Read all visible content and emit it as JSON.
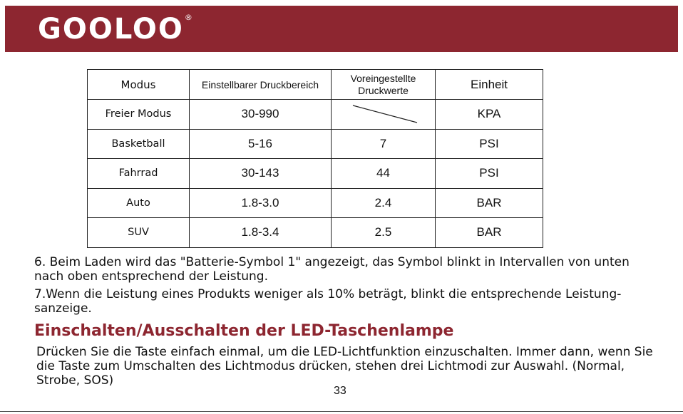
{
  "header": {
    "brand_color": "#8d2630",
    "logo_text": "GOOLOO",
    "logo_registered": "®"
  },
  "table": {
    "headers": [
      "Modus",
      "Einstellbarer Druckbereich",
      "Voreingestellte Druckwerte",
      "Einheit"
    ],
    "rows": [
      {
        "mode": "Freier Modus",
        "range": "30-990",
        "preset": "",
        "unit": "KPA"
      },
      {
        "mode": "Basketball",
        "range": "5-16",
        "preset": "7",
        "unit": "PSI"
      },
      {
        "mode": "Fahrrad",
        "range": "30-143",
        "preset": "44",
        "unit": "PSI"
      },
      {
        "mode": "Auto",
        "range": "1.8-3.0",
        "preset": "2.4",
        "unit": "BAR"
      },
      {
        "mode": "SUV",
        "range": "1.8-3.4",
        "preset": "2.5",
        "unit": "BAR"
      }
    ]
  },
  "paragraphs": {
    "item6": "6. Beim Laden wird das \"Batterie-Symbol 1\" angezeigt, das Symbol blinkt in Intervallen von unten nach oben entsprechend der Leistung.",
    "item7": "7.Wenn die Leistung eines Produkts weniger als 10% beträgt, blinkt die entsprechende Leistung- sanzeige."
  },
  "section": {
    "title": "Einschalten/Ausschalten der LED-Taschenlampe",
    "body": "Drücken Sie die Taste einfach einmal, um die LED-Lichtfunktion einzuschalten. Immer dann, wenn Sie die Taste zum Umschalten des Lichtmodus drücken, stehen drei Lichtmodi zur Auswahl. (Normal, Strobe, SOS)"
  },
  "page_number": "33"
}
